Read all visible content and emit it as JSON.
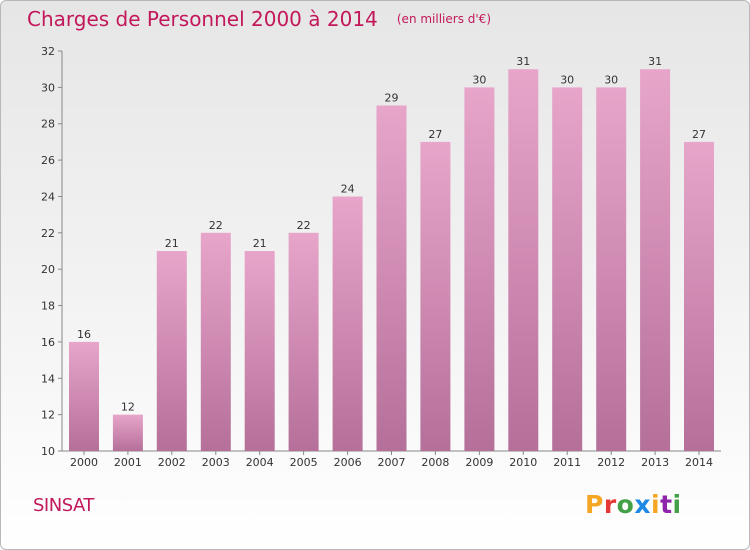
{
  "header": {
    "title": "Charges de Personnel 2000 à 2014",
    "subtitle": "(en milliers d'€)"
  },
  "footer": {
    "commune": "SINSAT",
    "logo_letters": [
      "P",
      "r",
      "o",
      "x",
      "i",
      "t",
      "i"
    ],
    "logo_colors": [
      "#f5a623",
      "#e53935",
      "#43a047",
      "#1e88e5",
      "#f5a623",
      "#8e24aa",
      "#43a047"
    ]
  },
  "colors": {
    "bar_top": "#e8a5ca",
    "bar_bottom": "#b5709a",
    "accent": "#c2185b"
  },
  "chart_data": {
    "type": "bar",
    "title": "Charges de Personnel 2000 à 2014",
    "subtitle": "(en milliers d'€)",
    "categories": [
      "2000",
      "2001",
      "2002",
      "2003",
      "2004",
      "2005",
      "2006",
      "2007",
      "2008",
      "2009",
      "2010",
      "2011",
      "2012",
      "2013",
      "2014"
    ],
    "values": [
      16,
      12,
      21,
      22,
      21,
      22,
      24,
      29,
      27,
      30,
      31,
      30,
      30,
      31,
      27
    ],
    "ylim": [
      10,
      32
    ],
    "yticks": [
      10,
      12,
      14,
      16,
      18,
      20,
      22,
      24,
      26,
      28,
      30,
      32
    ],
    "grid": false,
    "legend": "none"
  }
}
